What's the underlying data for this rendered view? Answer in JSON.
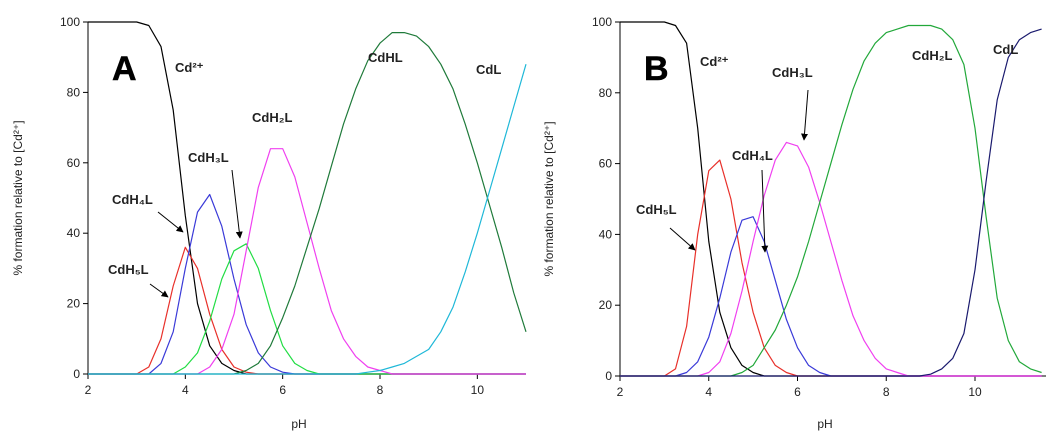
{
  "chart_data": [
    {
      "type": "line",
      "title": "A",
      "x_label": "pH",
      "y_label": "% formation relative to [Cd²⁺]",
      "xlim": [
        2,
        11
      ],
      "xticks": [
        2,
        4,
        6,
        8,
        10
      ],
      "ylim": [
        0,
        100
      ],
      "yticks": [
        0,
        20,
        40,
        60,
        80,
        100
      ],
      "x": [
        2,
        2.5,
        3,
        3.25,
        3.5,
        3.75,
        4,
        4.25,
        4.5,
        4.75,
        5,
        5.25,
        5.5,
        5.75,
        6,
        6.25,
        6.5,
        6.75,
        7,
        7.25,
        7.5,
        7.75,
        8,
        8.25,
        8.5,
        8.75,
        9,
        9.25,
        9.5,
        9.75,
        10,
        10.25,
        10.5,
        10.75,
        11
      ],
      "series": [
        {
          "name": "Cd²⁺",
          "color": "#000000",
          "values": [
            100,
            100,
            100,
            99,
            93,
            75,
            45,
            20,
            8,
            3,
            1,
            0,
            0,
            0,
            0,
            0,
            0,
            0,
            0,
            0,
            0,
            0,
            0,
            0,
            0,
            0,
            0,
            0,
            0,
            0,
            0,
            0,
            0,
            0,
            0
          ]
        },
        {
          "name": "CdH₅L",
          "color": "#e8302a",
          "values": [
            0,
            0,
            0,
            2,
            10,
            25,
            36,
            30,
            17,
            7,
            2,
            0.5,
            0,
            0,
            0,
            0,
            0,
            0,
            0,
            0,
            0,
            0,
            0,
            0,
            0,
            0,
            0,
            0,
            0,
            0,
            0,
            0,
            0,
            0,
            0
          ]
        },
        {
          "name": "CdH₄L",
          "color": "#3a3ad8",
          "values": [
            0,
            0,
            0,
            0,
            3,
            12,
            30,
            46,
            51,
            42,
            27,
            14,
            6,
            2,
            0.5,
            0,
            0,
            0,
            0,
            0,
            0,
            0,
            0,
            0,
            0,
            0,
            0,
            0,
            0,
            0,
            0,
            0,
            0,
            0,
            0
          ]
        },
        {
          "name": "CdH₃L",
          "color": "#22dd44",
          "values": [
            0,
            0,
            0,
            0,
            0,
            0,
            2,
            6,
            15,
            27,
            35,
            37,
            30,
            18,
            8,
            3,
            1,
            0,
            0,
            0,
            0,
            0,
            0,
            0,
            0,
            0,
            0,
            0,
            0,
            0,
            0,
            0,
            0,
            0,
            0
          ]
        },
        {
          "name": "CdH₂L",
          "color": "#f040f0",
          "values": [
            0,
            0,
            0,
            0,
            0,
            0,
            0,
            0,
            2,
            7,
            17,
            35,
            53,
            64,
            64,
            56,
            43,
            30,
            18,
            10,
            5,
            2,
            1,
            0,
            0,
            0,
            0,
            0,
            0,
            0,
            0,
            0,
            0,
            0,
            0
          ]
        },
        {
          "name": "CdHL",
          "color": "#1f7a3a",
          "values": [
            0,
            0,
            0,
            0,
            0,
            0,
            0,
            0,
            0,
            0,
            0,
            1,
            3,
            8,
            16,
            25,
            36,
            47,
            59,
            71,
            81,
            89,
            94,
            97,
            97,
            96,
            93,
            88,
            81,
            71,
            60,
            48,
            36,
            23,
            12
          ]
        },
        {
          "name": "CdL",
          "color": "#1fb8d8",
          "values": [
            0,
            0,
            0,
            0,
            0,
            0,
            0,
            0,
            0,
            0,
            0,
            0,
            0,
            0,
            0,
            0,
            0,
            0,
            0,
            0,
            0,
            0.5,
            1,
            2,
            3,
            5,
            7,
            12,
            19,
            29,
            40,
            52,
            64,
            76,
            88
          ]
        }
      ]
    },
    {
      "type": "line",
      "title": "B",
      "x_label": "pH",
      "y_label": "% formation relative to [Cd²⁺]",
      "xlim": [
        2,
        11.6
      ],
      "xticks": [
        2,
        4,
        6,
        8,
        10
      ],
      "ylim": [
        0,
        100
      ],
      "yticks": [
        0,
        20,
        40,
        60,
        80,
        100
      ],
      "x": [
        2,
        2.5,
        3,
        3.25,
        3.5,
        3.75,
        4,
        4.25,
        4.5,
        4.75,
        5,
        5.25,
        5.5,
        5.75,
        6,
        6.25,
        6.5,
        6.75,
        7,
        7.25,
        7.5,
        7.75,
        8,
        8.25,
        8.5,
        8.75,
        9,
        9.25,
        9.5,
        9.75,
        10,
        10.25,
        10.5,
        10.75,
        11,
        11.25,
        11.5
      ],
      "series": [
        {
          "name": "Cd²⁺",
          "color": "#000000",
          "values": [
            100,
            100,
            100,
            99,
            94,
            70,
            38,
            18,
            8,
            3,
            1,
            0,
            0,
            0,
            0,
            0,
            0,
            0,
            0,
            0,
            0,
            0,
            0,
            0,
            0,
            0,
            0,
            0,
            0,
            0,
            0,
            0,
            0,
            0,
            0,
            0,
            0
          ]
        },
        {
          "name": "CdH₅L",
          "color": "#e8302a",
          "values": [
            0,
            0,
            0,
            2,
            14,
            40,
            58,
            61,
            50,
            32,
            18,
            8,
            3,
            1,
            0,
            0,
            0,
            0,
            0,
            0,
            0,
            0,
            0,
            0,
            0,
            0,
            0,
            0,
            0,
            0,
            0,
            0,
            0,
            0,
            0,
            0,
            0
          ]
        },
        {
          "name": "CdH₄L",
          "color": "#3a3ad8",
          "values": [
            0,
            0,
            0,
            0,
            1,
            4,
            11,
            22,
            35,
            44,
            45,
            38,
            27,
            16,
            8,
            3,
            1,
            0,
            0,
            0,
            0,
            0,
            0,
            0,
            0,
            0,
            0,
            0,
            0,
            0,
            0,
            0,
            0,
            0,
            0,
            0,
            0
          ]
        },
        {
          "name": "CdH₃L",
          "color": "#f040f0",
          "values": [
            0,
            0,
            0,
            0,
            0,
            0,
            1,
            4,
            12,
            24,
            38,
            51,
            61,
            66,
            65,
            59,
            49,
            38,
            27,
            17,
            10,
            5,
            2,
            1,
            0,
            0,
            0,
            0,
            0,
            0,
            0,
            0,
            0,
            0,
            0,
            0,
            0
          ]
        },
        {
          "name": "CdH₂L",
          "color": "#22a83a",
          "values": [
            0,
            0,
            0,
            0,
            0,
            0,
            0,
            0,
            0,
            1,
            3,
            8,
            13,
            20,
            28,
            38,
            49,
            60,
            71,
            81,
            89,
            94,
            97,
            98,
            99,
            99,
            99,
            98,
            95,
            88,
            70,
            45,
            22,
            10,
            4,
            2,
            1
          ]
        },
        {
          "name": "CdL",
          "color": "#1a1a6e",
          "values": [
            0,
            0,
            0,
            0,
            0,
            0,
            0,
            0,
            0,
            0,
            0,
            0,
            0,
            0,
            0,
            0,
            0,
            0,
            0,
            0,
            0,
            0,
            0,
            0,
            0,
            0,
            0.5,
            2,
            5,
            12,
            30,
            55,
            78,
            90,
            95,
            97,
            98
          ]
        }
      ]
    }
  ]
}
